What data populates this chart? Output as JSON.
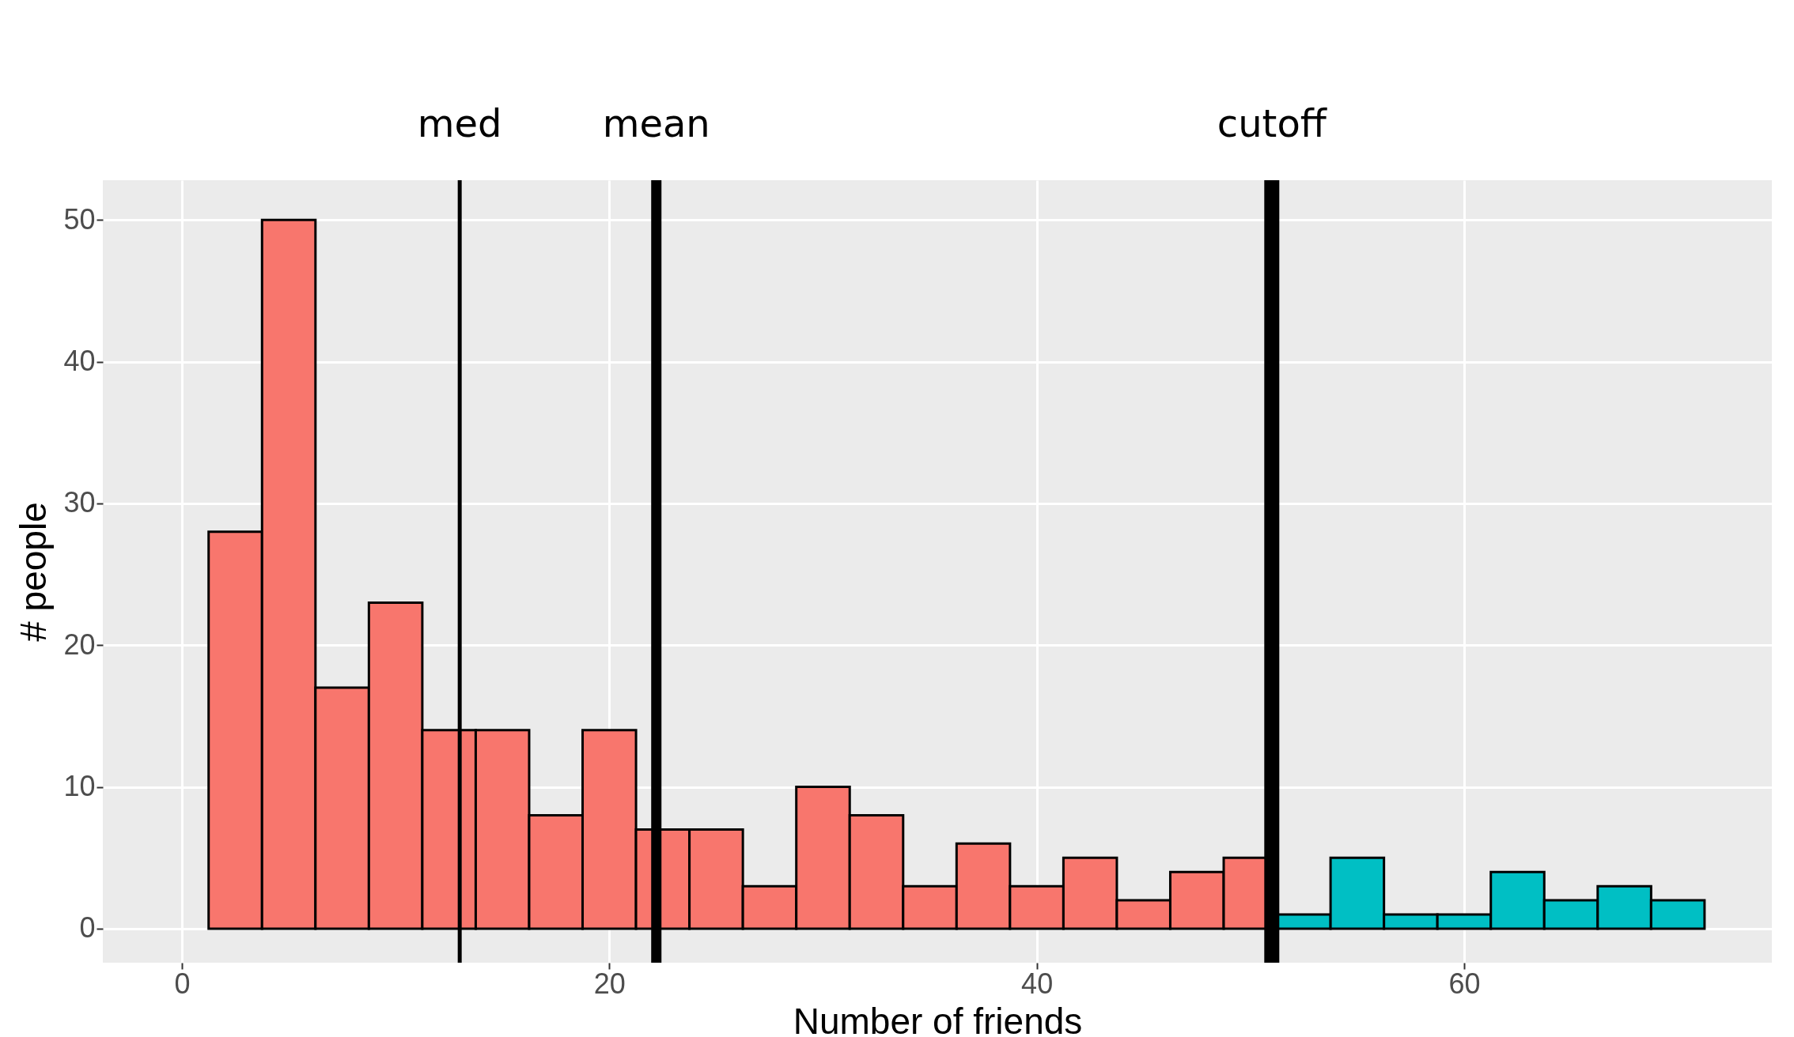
{
  "chart_data": {
    "type": "histogram",
    "xlabel": "Number of friends",
    "ylabel": "# people",
    "bins": [
      1.25,
      3.75,
      6.25,
      8.75,
      11.25,
      13.75,
      16.25,
      18.75,
      21.25,
      23.75,
      26.25,
      28.75,
      31.25,
      33.75,
      36.25,
      38.75,
      41.25,
      43.75,
      46.25,
      48.75,
      51.25,
      53.75,
      56.25,
      58.75,
      61.25,
      63.75,
      66.25,
      68.75,
      71.25
    ],
    "values": [
      28,
      50,
      17,
      23,
      14,
      14,
      8,
      14,
      7,
      7,
      3,
      10,
      8,
      3,
      6,
      3,
      5,
      2,
      4,
      5,
      1,
      5,
      1,
      1,
      4,
      2,
      3,
      2
    ],
    "colors": [
      "#f8766d",
      "#f8766d",
      "#f8766d",
      "#f8766d",
      "#f8766d",
      "#f8766d",
      "#f8766d",
      "#f8766d",
      "#f8766d",
      "#f8766d",
      "#f8766d",
      "#f8766d",
      "#f8766d",
      "#f8766d",
      "#f8766d",
      "#f8766d",
      "#f8766d",
      "#f8766d",
      "#f8766d",
      "#f8766d",
      "#00bfc4",
      "#00bfc4",
      "#00bfc4",
      "#00bfc4",
      "#00bfc4",
      "#00bfc4",
      "#00bfc4",
      "#00bfc4"
    ],
    "xlim": [
      -3.7,
      74.4
    ],
    "ylim": [
      -2.4,
      52.8
    ],
    "xticks": [
      0,
      20,
      40,
      60
    ],
    "yticks": [
      0,
      10,
      20,
      30,
      40,
      50
    ],
    "grid": true,
    "ref_lines": [
      {
        "axis": "x",
        "value": 13,
        "label": "med",
        "color": "#000000"
      },
      {
        "axis": "x",
        "value": 22.2,
        "label": "mean",
        "color": "#000000"
      },
      {
        "axis": "x",
        "value": 51,
        "label": "cutoff",
        "color": "#000000"
      }
    ]
  }
}
